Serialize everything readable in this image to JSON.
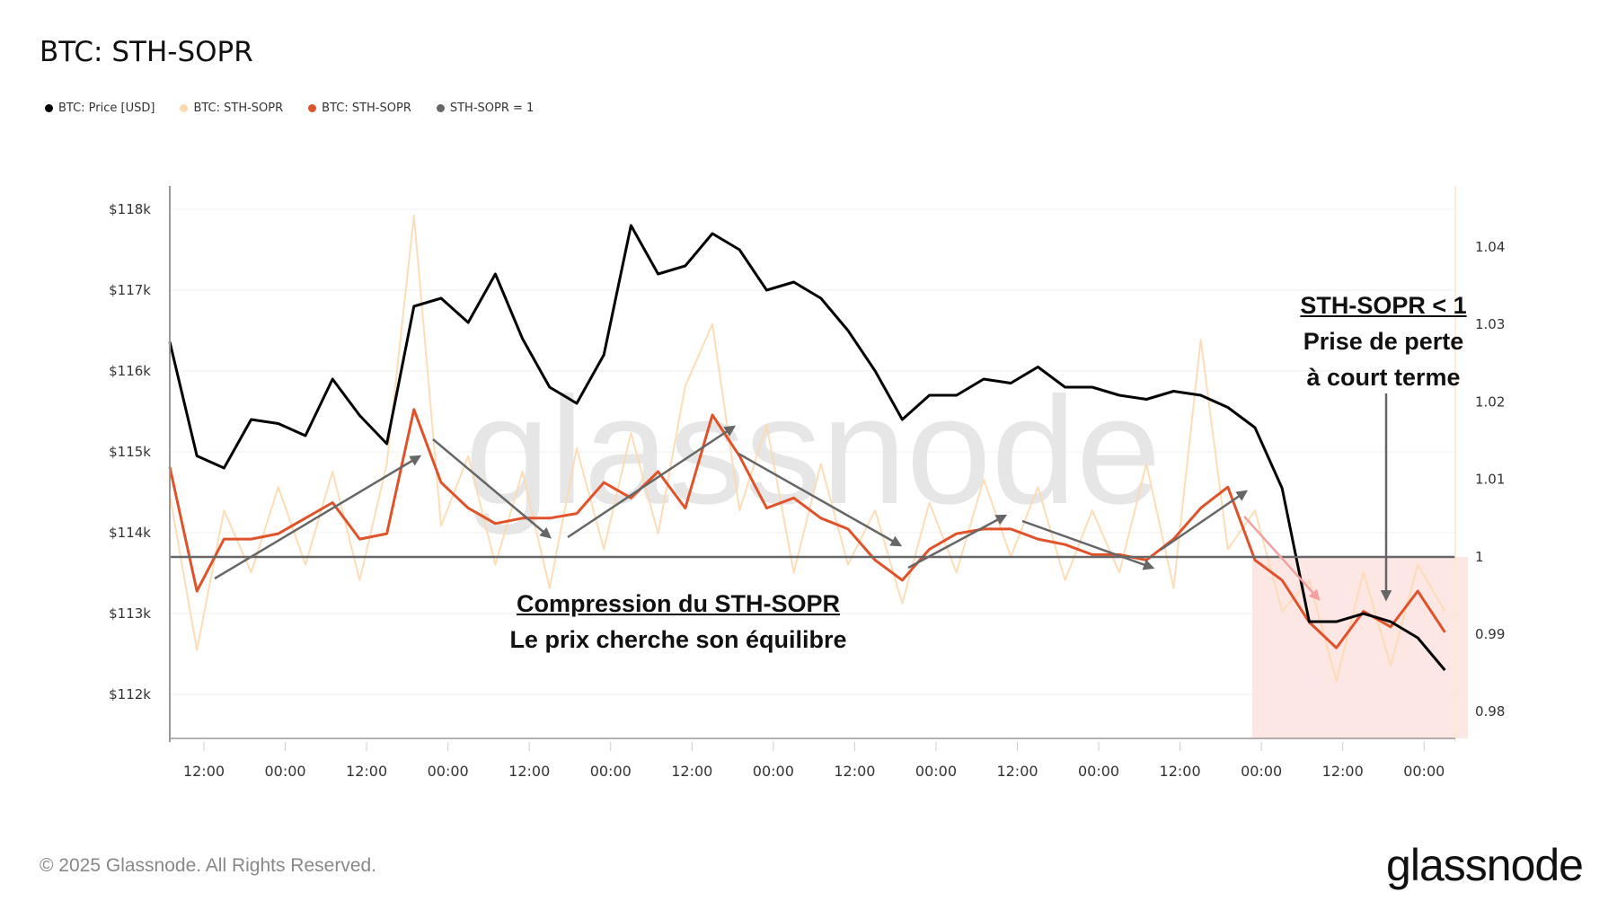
{
  "title": "BTC: STH-SOPR",
  "legend": [
    {
      "label": "BTC: Price [USD]",
      "color": "#000000"
    },
    {
      "label": "BTC: STH-SOPR",
      "color": "#fdd9b0"
    },
    {
      "label": "BTC: STH-SOPR",
      "color": "#e0522a"
    },
    {
      "label": "STH-SOPR = 1",
      "color": "#666666"
    }
  ],
  "watermark": "glassnode",
  "annotations": {
    "center_title": "Compression du STH-SOPR",
    "center_sub": "Le prix cherche son équilibre",
    "right_title": "STH-SOPR < 1",
    "right_line1": "Prise de perte",
    "right_line2": "à court terme"
  },
  "footer": {
    "copyright": "© 2025 Glassnode. All Rights Reserved.",
    "logo": "glassnode"
  },
  "chart_data": {
    "type": "line",
    "title": "BTC: STH-SOPR",
    "sampling": "4h",
    "x_tick_labels": [
      "12:00",
      "00:00",
      "12:00",
      "00:00",
      "12:00",
      "00:00",
      "12:00",
      "00:00",
      "12:00",
      "00:00",
      "12:00",
      "00:00",
      "12:00",
      "00:00",
      "12:00",
      "00:00"
    ],
    "y_left": {
      "ticks": [
        "$118k",
        "$117k",
        "$116k",
        "$115k",
        "$114k",
        "$113k",
        "$112k"
      ],
      "range": [
        111500,
        118300
      ]
    },
    "y_right": {
      "ticks": [
        "1.04",
        "1.03",
        "1.02",
        "1.01",
        "1",
        "0.99",
        "0.98"
      ],
      "range": [
        0.977,
        1.045
      ]
    },
    "grid": true,
    "legend_position": "top-left",
    "series": [
      {
        "name": "BTC: Price [USD]",
        "axis": "left",
        "color": "#000000",
        "values": [
          116360,
          114950,
          114800,
          115400,
          115350,
          115200,
          115900,
          115450,
          115100,
          116800,
          116900,
          116600,
          117200,
          116400,
          115800,
          115600,
          116200,
          117800,
          117200,
          117300,
          117700,
          117500,
          117000,
          117100,
          116900,
          116500,
          116000,
          115400,
          115700,
          115700,
          115900,
          115850,
          116050,
          115800,
          115800,
          115700,
          115650,
          115750,
          115700,
          115550,
          115300,
          114550,
          112900,
          112900,
          113000,
          112900,
          112700,
          112300
        ]
      },
      {
        "name": "BTC: STH-SOPR",
        "axis": "right",
        "color": "#fdd9b0",
        "values": [
          1.008,
          0.988,
          1.006,
          0.998,
          1.009,
          0.999,
          1.011,
          0.997,
          1.012,
          1.044,
          1.004,
          1.013,
          0.999,
          1.011,
          0.996,
          1.014,
          1.001,
          1.016,
          1.003,
          1.022,
          1.03,
          1.006,
          1.017,
          0.998,
          1.012,
          0.999,
          1.006,
          0.994,
          1.007,
          0.998,
          1.01,
          1.0,
          1.009,
          0.997,
          1.006,
          0.998,
          1.012,
          0.996,
          1.028,
          1.001,
          1.006,
          0.993,
          0.997,
          0.984,
          0.998,
          0.986,
          0.999,
          0.993
        ]
      },
      {
        "name": "BTC: STH-SOPR",
        "axis": "right",
        "color": "#e0522a",
        "values": [
          1.0116,
          0.9956,
          1.0023,
          1.0023,
          1.003,
          1.005,
          1.007,
          1.0023,
          1.003,
          1.019,
          1.0096,
          1.0063,
          1.0043,
          1.005,
          1.005,
          1.0056,
          1.0096,
          1.0076,
          1.011,
          1.0063,
          1.0183,
          1.013,
          1.0063,
          1.0076,
          1.005,
          1.0036,
          0.9996,
          0.997,
          1.001,
          1.003,
          1.0036,
          1.0036,
          1.0023,
          1.0016,
          1.0003,
          1.0003,
          0.9996,
          1.0023,
          1.0063,
          1.009,
          0.9996,
          0.997,
          0.9916,
          0.9883,
          0.993,
          0.991,
          0.9956,
          0.9903
        ]
      },
      {
        "name": "STH-SOPR = 1",
        "axis": "right",
        "color": "#666666",
        "constant": 1
      }
    ],
    "highlight": {
      "color": "#fbe3e1"
    }
  }
}
